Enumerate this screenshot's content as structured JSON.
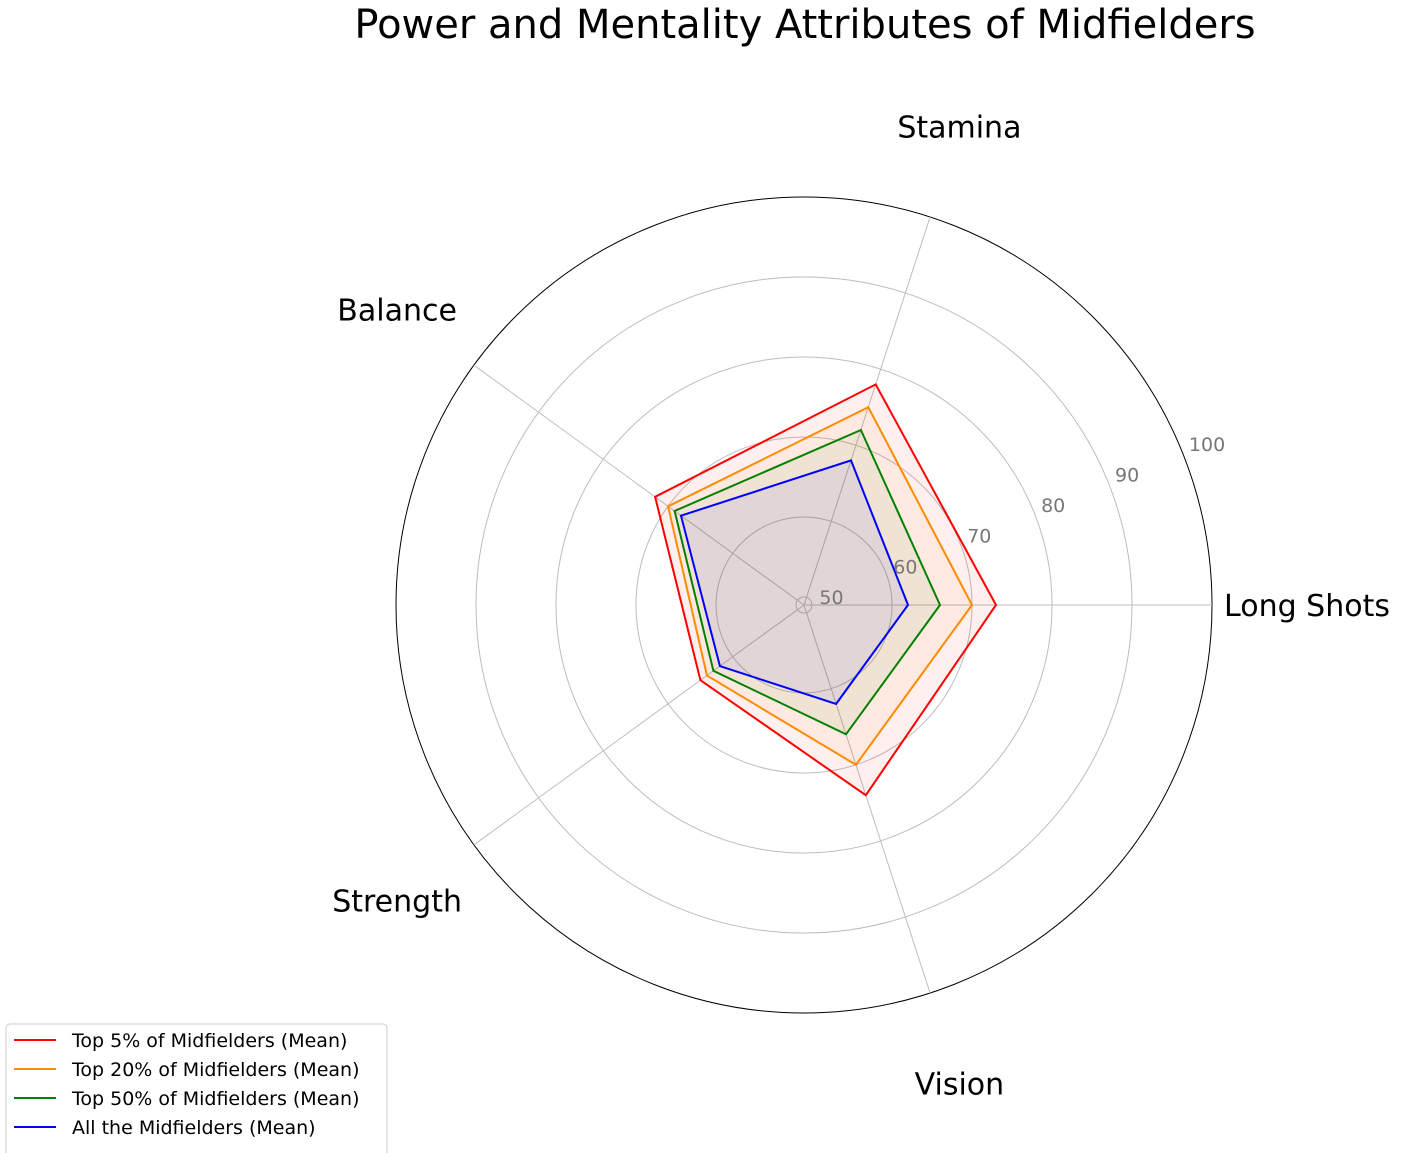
{
  "chart_data": {
    "type": "radar",
    "title": "Power and Mentality Attributes of Midfielders",
    "axes": [
      "Long Shots",
      "Stamina",
      "Balance",
      "Strength",
      "Vision"
    ],
    "r_ticks": [
      50,
      60,
      70,
      80,
      90,
      100
    ],
    "r_range": [
      49,
      100
    ],
    "grid": true,
    "legend_position": "bottom-left",
    "series": [
      {
        "name": "Top 5% of Midfielders (Mean)",
        "color": "#ff0000",
        "values": [
          73,
          78,
          72,
          65,
          74
        ]
      },
      {
        "name": "Top 20% of Midfielders (Mean)",
        "color": "#ff8c00",
        "values": [
          70,
          75,
          70,
          64,
          70
        ]
      },
      {
        "name": "Top 50% of Midfielders (Mean)",
        "color": "#008000",
        "values": [
          66,
          72,
          69,
          63,
          66
        ]
      },
      {
        "name": "All the Midfielders (Mean)",
        "color": "#0000ff",
        "values": [
          62,
          68,
          68,
          62,
          62
        ]
      }
    ]
  }
}
